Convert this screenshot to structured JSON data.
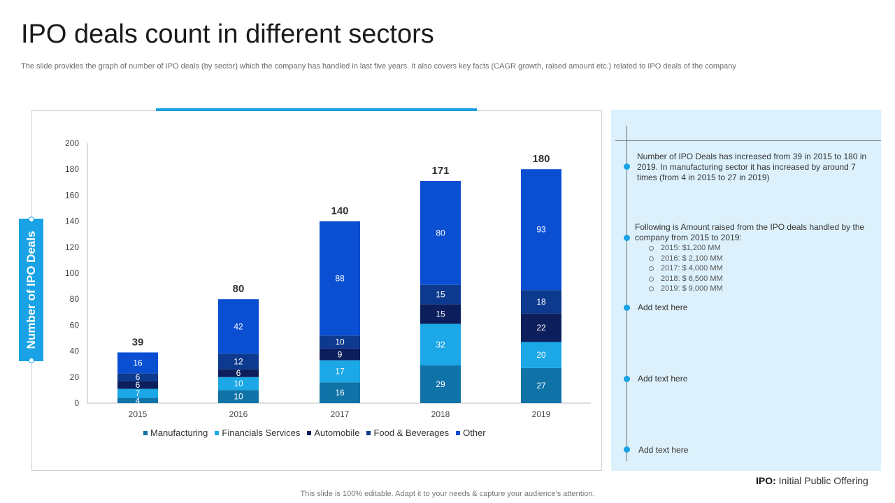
{
  "title": "IPO deals count in different sectors",
  "subtitle": "The slide provides the graph of number of IPO deals (by sector) which the company has handled in last five years. It also covers key facts (CAGR growth, raised amount etc.) related to IPO deals of the company",
  "chart_data": {
    "type": "bar",
    "stacked": true,
    "title": "",
    "xlabel": "",
    "ylabel": "Number of IPO Deals",
    "ylim": [
      0,
      200
    ],
    "yticks": [
      0,
      20,
      40,
      60,
      80,
      100,
      120,
      140,
      160,
      180,
      200
    ],
    "categories": [
      "2015",
      "2016",
      "2017",
      "2018",
      "2019"
    ],
    "totals": [
      39,
      80,
      140,
      171,
      180
    ],
    "series": [
      {
        "name": "Manufacturing",
        "color": "#0f73a8",
        "values": [
          4,
          10,
          16,
          29,
          27
        ]
      },
      {
        "name": "Financials Services",
        "color": "#1ca7e6",
        "values": [
          7,
          10,
          17,
          32,
          20
        ]
      },
      {
        "name": "Automobile",
        "color": "#0c1f5c",
        "values": [
          6,
          6,
          9,
          15,
          22
        ]
      },
      {
        "name": "Food & Beverages",
        "color": "#0d3a8f",
        "values": [
          6,
          12,
          10,
          15,
          18
        ]
      },
      {
        "name": "Other",
        "color": "#0a4fd2",
        "values": [
          16,
          42,
          88,
          80,
          93
        ]
      }
    ],
    "legend_position": "bottom"
  },
  "notes": {
    "note1": "Number of IPO Deals has increased from 39 in 2015 to 180 in 2019. In manufacturing sector it has increased by around 7 times (from 4 in 2015 to 27 in 2019)",
    "note2": "Following is Amount raised from the IPO deals handled by the company from 2015 to 2019:",
    "amounts": [
      "2015: $1,200 MM",
      "2016: $ 2,100 MM",
      "2017: $ 4,000 MM",
      "2018: $ 6,500 MM",
      "2019: $ 9,000 MM"
    ],
    "add1": "Add text here",
    "add2": "Add text here",
    "add3": "Add text here"
  },
  "ipo_abbr": "IPO:",
  "ipo_full": "Initial Public Offering",
  "footer": "This slide is 100% editable. Adapt it to your needs & capture your audience’s attention."
}
